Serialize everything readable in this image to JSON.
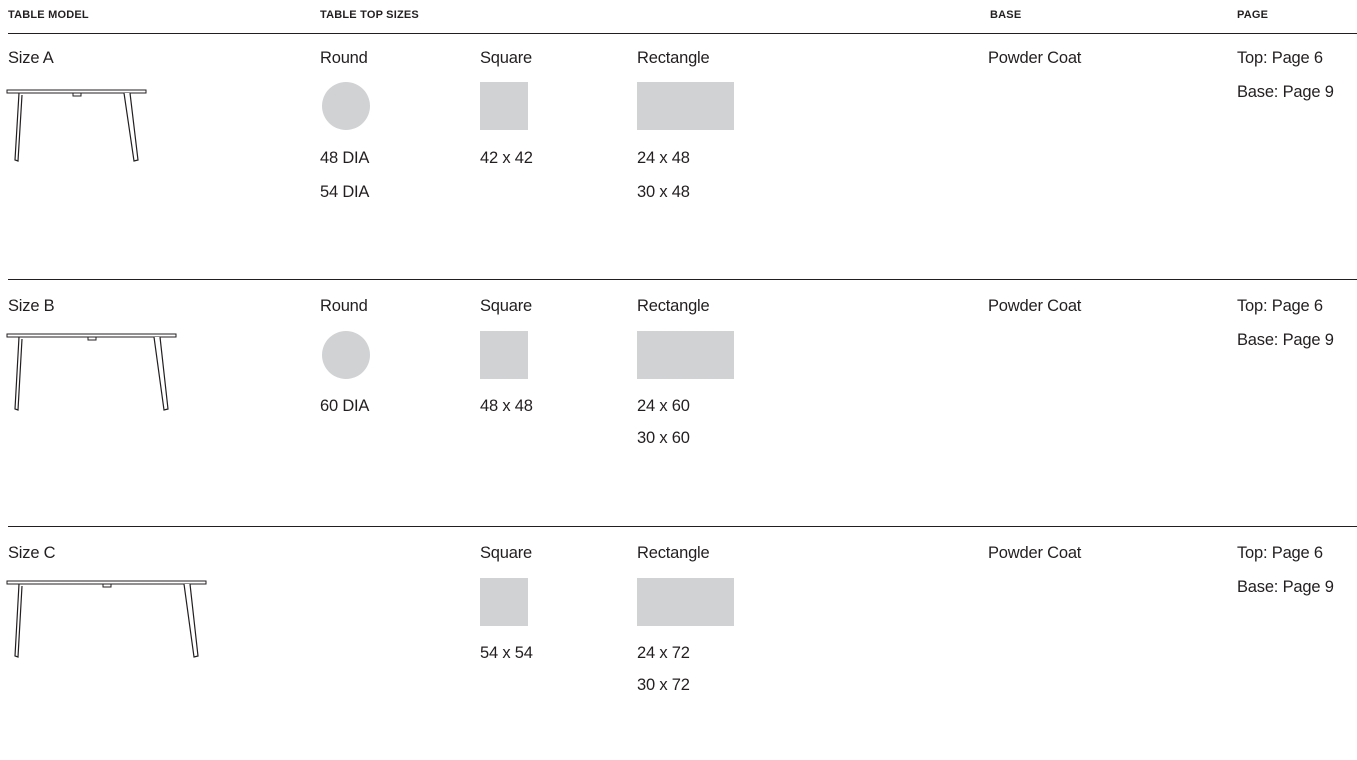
{
  "headers": {
    "model": "TABLE MODEL",
    "sizes": "TABLE TOP SIZES",
    "base": "BASE",
    "page": "PAGE"
  },
  "colors": {
    "swatch": "#d1d2d4",
    "ink": "#231f20"
  },
  "rows": [
    {
      "name": "Size A",
      "round": {
        "label": "Round",
        "sizes": [
          "48 DIA",
          "54 DIA"
        ]
      },
      "square": {
        "label": "Square",
        "sizes": [
          "42 x 42"
        ]
      },
      "rectangle": {
        "label": "Rectangle",
        "sizes": [
          "24 x 48",
          "30 x 48"
        ]
      },
      "base": "Powder Coat",
      "page_top": "Top: Page 6",
      "page_base": "Base: Page 9"
    },
    {
      "name": "Size B",
      "round": {
        "label": "Round",
        "sizes": [
          "60 DIA"
        ]
      },
      "square": {
        "label": "Square",
        "sizes": [
          "48 x 48"
        ]
      },
      "rectangle": {
        "label": "Rectangle",
        "sizes": [
          "24 x 60",
          "30 x 60"
        ]
      },
      "base": "Powder Coat",
      "page_top": "Top: Page 6",
      "page_base": "Base: Page 9"
    },
    {
      "name": "Size C",
      "square": {
        "label": "Square",
        "sizes": [
          "54 x 54"
        ]
      },
      "rectangle": {
        "label": "Rectangle",
        "sizes": [
          "24 x 72",
          "30 x 72"
        ]
      },
      "base": "Powder Coat",
      "page_top": "Top: Page 6",
      "page_base": "Base: Page 9"
    }
  ]
}
